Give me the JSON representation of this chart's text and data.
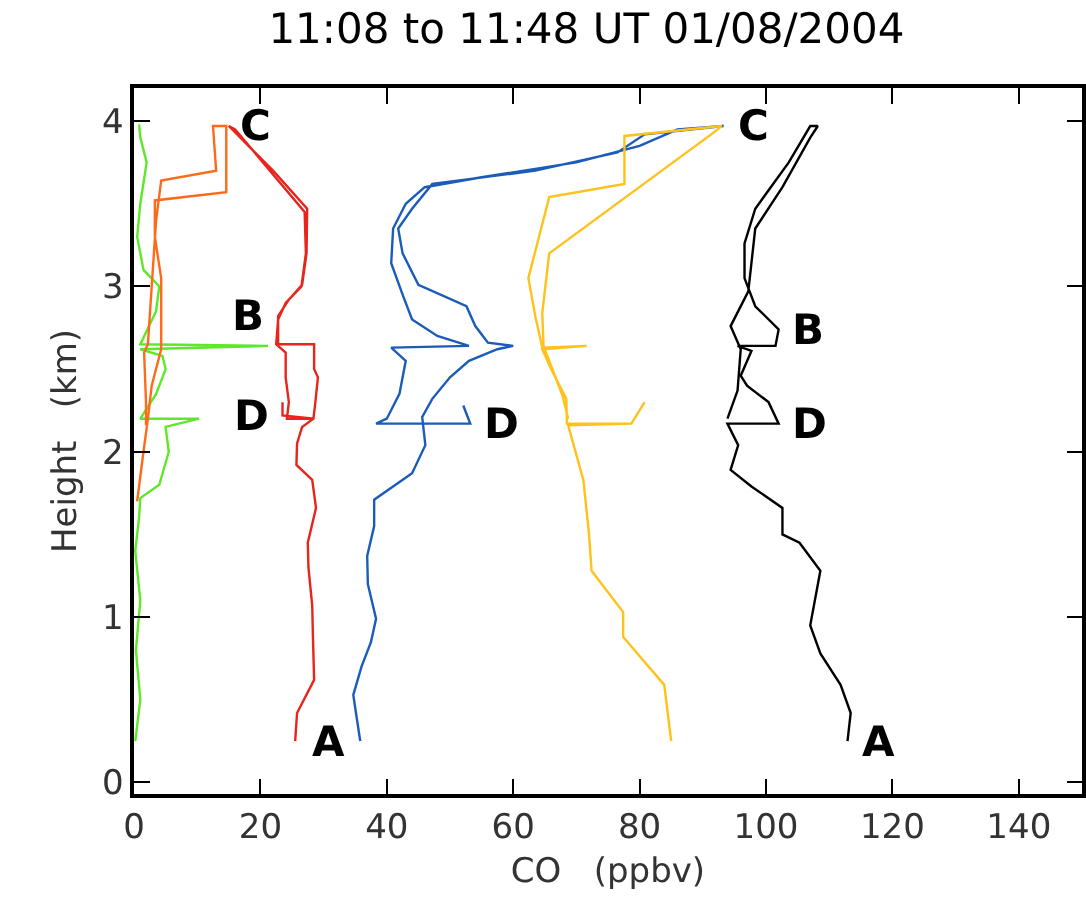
{
  "chart_data": {
    "type": "line",
    "title": "11:08 to 11:48 UT 01/08/2004",
    "xlabel": "CO   (ppbv)",
    "ylabel": "Height   (km)",
    "xlim": [
      0,
      150
    ],
    "ylim": [
      -0.07,
      4.2
    ],
    "xticks": [
      0,
      20,
      40,
      60,
      80,
      100,
      120,
      140
    ],
    "yticks": [
      0,
      1,
      2,
      3,
      4
    ],
    "series": [
      {
        "color": "#5ee82a",
        "x": [
          0.2,
          1,
          0.3,
          1,
          0.2,
          0.8,
          1,
          4,
          5.5,
          5,
          10.3,
          1,
          3.5,
          5,
          4.5,
          1,
          21.2,
          1,
          3.5,
          4,
          1.5,
          0.5,
          1,
          2,
          1,
          0.8
        ],
        "values": [
          0.25,
          0.5,
          0.8,
          1.1,
          1.4,
          1.6,
          1.72,
          1.8,
          2.0,
          2.15,
          2.2,
          2.2,
          2.35,
          2.5,
          2.58,
          2.62,
          2.64,
          2.65,
          2.85,
          3.0,
          3.1,
          3.3,
          3.5,
          3.75,
          3.9,
          3.98
        ]
      },
      {
        "color": "#ff6a1a",
        "x": [
          0.5,
          1.5,
          2.2,
          2.8,
          4.3,
          4.3,
          3.3,
          3.3,
          14.6,
          14.6,
          12.5,
          13,
          4.3,
          3.5,
          2.8,
          2.2,
          1.6,
          1.9,
          1.9
        ],
        "values": [
          1.7,
          2.0,
          2.2,
          2.4,
          2.62,
          3.05,
          3.3,
          3.52,
          3.57,
          3.97,
          3.97,
          3.7,
          3.64,
          3.4,
          3.0,
          2.65,
          2.6,
          2.3,
          2.16
        ]
      },
      {
        "color": "#e8241c",
        "x": [
          25.5,
          25.8,
          28.5,
          28.3,
          28.2,
          27.6,
          27.5,
          28.8,
          28.2,
          25.7,
          25.8,
          26.6,
          28.4,
          28.7,
          29.1,
          28.5,
          28.5,
          22.8,
          22.8,
          24.5,
          26.6,
          27.3,
          27.4,
          22,
          15,
          16,
          27,
          27.2,
          26.5,
          24,
          22.8,
          22.5,
          24,
          24,
          24.5,
          24.2,
          28.5,
          23.5,
          23.5
        ],
        "values": [
          0.25,
          0.42,
          0.62,
          0.9,
          1.07,
          1.3,
          1.45,
          1.66,
          1.83,
          1.92,
          2.05,
          2.15,
          2.2,
          2.3,
          2.45,
          2.5,
          2.65,
          2.65,
          2.82,
          2.92,
          3.01,
          3.2,
          3.47,
          3.7,
          3.97,
          3.95,
          3.45,
          3.2,
          3.0,
          2.9,
          2.8,
          2.65,
          2.6,
          2.45,
          2.3,
          2.2,
          2.2,
          2.22,
          2.3
        ]
      },
      {
        "color": "#1a5cb8",
        "x": [
          35.8,
          35.2,
          34.7,
          36,
          37.5,
          38.3,
          37,
          36.9,
          38,
          38,
          44,
          46.1,
          45.6,
          47.2,
          50,
          53,
          57.5,
          60,
          56,
          54,
          52.6,
          45,
          42.5,
          41.8,
          44,
          47.2,
          63.5,
          76.5,
          80.8,
          93.3,
          86,
          80,
          70,
          55,
          46,
          43,
          41,
          40.7,
          42.5,
          44,
          48,
          53,
          40.7,
          43,
          42,
          40,
          38.3,
          53.2,
          52.1
        ],
        "values": [
          0.25,
          0.4,
          0.53,
          0.7,
          0.85,
          0.99,
          1.2,
          1.37,
          1.55,
          1.71,
          1.87,
          2.04,
          2.21,
          2.32,
          2.45,
          2.55,
          2.62,
          2.64,
          2.66,
          2.76,
          2.88,
          3.01,
          3.2,
          3.35,
          3.47,
          3.62,
          3.7,
          3.81,
          3.92,
          3.97,
          3.95,
          3.85,
          3.75,
          3.66,
          3.6,
          3.5,
          3.35,
          3.14,
          2.95,
          2.8,
          2.7,
          2.64,
          2.63,
          2.55,
          2.35,
          2.2,
          2.17,
          2.17,
          2.28
        ]
      },
      {
        "color": "#ffc21a",
        "x": [
          85,
          83.9,
          77.4,
          77.4,
          72.4,
          72,
          71.1,
          68.7,
          78.7,
          80.8,
          78.7,
          68.5,
          68.4,
          66,
          64.6,
          71.6,
          64.6,
          63.5,
          62.4,
          65.7,
          77.6,
          77.6,
          93,
          91.7,
          65.7,
          64.6,
          64.8,
          67.8,
          68.7
        ],
        "values": [
          0.25,
          0.59,
          0.88,
          1.03,
          1.28,
          1.5,
          1.83,
          2.16,
          2.17,
          2.3,
          2.17,
          2.17,
          2.32,
          2.5,
          2.62,
          2.64,
          2.63,
          2.82,
          3.05,
          3.54,
          3.62,
          3.91,
          3.97,
          3.93,
          3.2,
          2.84,
          2.64,
          2.34,
          2.2
        ]
      },
      {
        "color": "#000000",
        "x": [
          112.9,
          113.4,
          111.8,
          108.6,
          107,
          108.6,
          105.3,
          102.6,
          102.6,
          97.7,
          94.4,
          95.6,
          93.9,
          102,
          100.4,
          97,
          96,
          97.7,
          95.5,
          101.5,
          102,
          98.3,
          96.6,
          96.6,
          98.3,
          103.6,
          107,
          108.2,
          107,
          102.6,
          98.3,
          97.2,
          94.4,
          96,
          95.5,
          93.9
        ],
        "values": [
          0.25,
          0.42,
          0.59,
          0.78,
          0.95,
          1.28,
          1.45,
          1.5,
          1.66,
          1.79,
          1.89,
          2.04,
          2.17,
          2.17,
          2.3,
          2.4,
          2.46,
          2.61,
          2.64,
          2.64,
          2.74,
          2.88,
          3.05,
          3.26,
          3.47,
          3.75,
          3.97,
          3.97,
          3.9,
          3.6,
          3.35,
          2.97,
          2.76,
          2.62,
          2.37,
          2.2
        ]
      }
    ],
    "annotations": [
      {
        "text": "A",
        "x": 35.8,
        "y": 0.25
      },
      {
        "text": "B",
        "x": 22.8,
        "y": 2.82
      },
      {
        "text": "C",
        "x": 14.6,
        "y": 3.97
      },
      {
        "text": "D",
        "x": 23.5,
        "y": 2.22
      },
      {
        "text": "C",
        "x": 93.3,
        "y": 3.97
      },
      {
        "text": "D",
        "x": 53.2,
        "y": 2.17
      },
      {
        "text": "A",
        "x": 112.9,
        "y": 0.25
      },
      {
        "text": "B",
        "x": 102,
        "y": 2.74
      },
      {
        "text": "D",
        "x": 102,
        "y": 2.17
      }
    ]
  }
}
